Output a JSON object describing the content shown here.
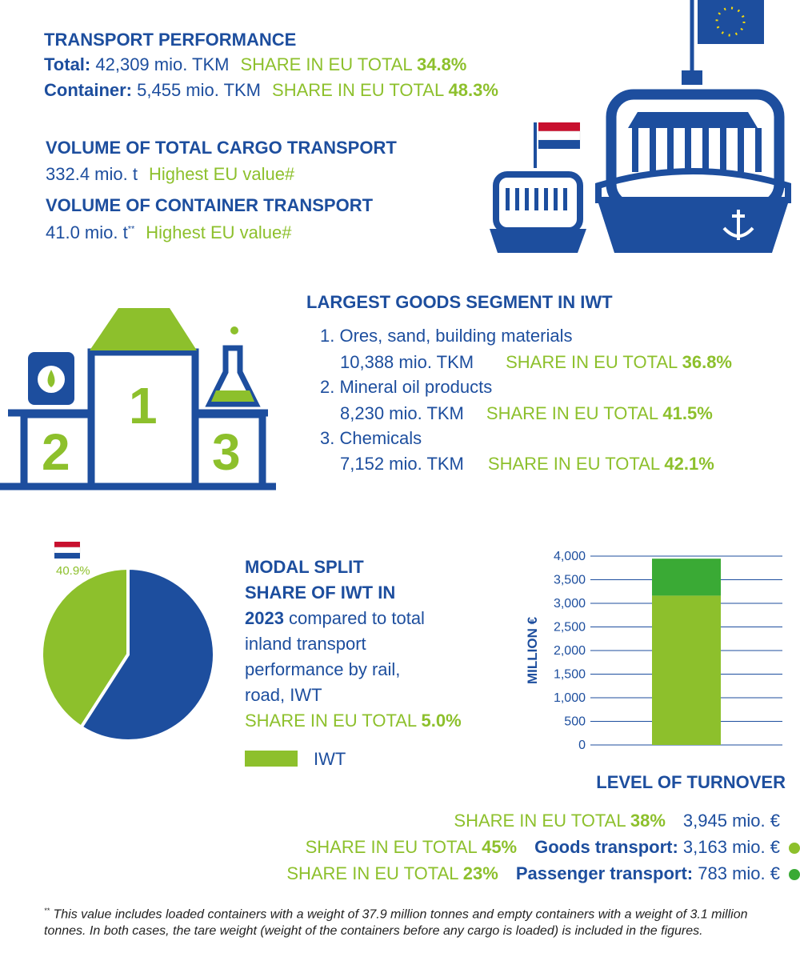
{
  "transport_performance": {
    "title": "TRANSPORT PERFORMANCE",
    "total": {
      "label": "Total:",
      "value": "42,309 mio. TKM",
      "share_label": "SHARE IN EU TOTAL",
      "share": "34.8%"
    },
    "container": {
      "label": "Container:",
      "value": "5,455 mio. TKM",
      "share_label": "SHARE IN EU TOTAL",
      "share": "48.3%"
    }
  },
  "cargo_volume": {
    "title": "VOLUME OF TOTAL CARGO TRANSPORT",
    "value": "332.4 mio. t",
    "note": "Highest EU value#"
  },
  "container_volume": {
    "title": "VOLUME OF CONTAINER TRANSPORT",
    "value": "41.0 mio. t",
    "mark": "**",
    "note": "Highest EU value#"
  },
  "goods_segment": {
    "title": "LARGEST GOODS SEGMENT IN IWT",
    "podium_labels": [
      "1",
      "2",
      "3"
    ],
    "items": [
      {
        "name": "1. Ores, sand, building materials",
        "value": "10,388 mio. TKM",
        "share_label": "SHARE IN EU TOTAL",
        "share": "36.8%"
      },
      {
        "name": "2. Mineral oil products",
        "value": "8,230 mio. TKM",
        "share_label": "SHARE IN EU TOTAL",
        "share": "41.5%"
      },
      {
        "name": "3. Chemicals",
        "value": "7,152 mio. TKM",
        "share_label": "SHARE IN EU TOTAL",
        "share": "42.1%"
      }
    ]
  },
  "modal_split": {
    "title": "MODAL SPLIT",
    "subtitle": "SHARE OF IWT IN",
    "year": "2023",
    "text": "compared to total inland transport performance by rail, road, IWT",
    "share_label": "SHARE IN EU TOTAL",
    "share": "5.0%"
  },
  "turnover": {
    "title": "LEVEL OF TURNOVER",
    "rows": [
      {
        "share_label": "SHARE IN EU TOTAL",
        "share": "38%",
        "label": null,
        "value": "3,945 mio. €"
      },
      {
        "share_label": "SHARE IN EU TOTAL",
        "share": "45%",
        "label": "Goods transport:",
        "value": "3,163 mio. €"
      },
      {
        "share_label": "SHARE IN EU TOTAL",
        "share": "23%",
        "label": "Passenger transport:",
        "value": "783 mio. €"
      }
    ]
  },
  "footnote": {
    "mark": "**",
    "text": "This value includes loaded containers with a weight of 37.9 million tonnes and empty containers with a weight of 3.1 million tonnes. In both cases, the tare weight (weight of the containers before any cargo is loaded) is included in the figures."
  },
  "chart_data": [
    {
      "type": "pie",
      "categories": [
        "IWT",
        null
      ],
      "values": [
        40.9,
        59.1
      ],
      "value_labels": [
        "40.9%",
        null
      ],
      "colors": [
        "#8dc02c",
        "#1d4e9e"
      ]
    },
    {
      "type": "bar",
      "stacked": true,
      "categories": [
        null
      ],
      "series": [
        {
          "color": "#8dc02c",
          "values": [
            3163
          ]
        },
        {
          "color": "#3aaa35",
          "values": [
            783
          ]
        }
      ],
      "ylim": [
        0,
        4000
      ],
      "yticks": [
        0,
        500,
        {
          "value": 1000,
          "label": "1,000"
        },
        {
          "value": 1500,
          "label": "1,500"
        },
        {
          "value": 2000,
          "label": "2,000"
        },
        {
          "value": 2500,
          "label": "2,500"
        },
        {
          "value": 3000,
          "label": "3,000"
        },
        {
          "value": 3500,
          "label": "3,500"
        },
        {
          "value": 4000,
          "label": "4,000"
        }
      ],
      "y_label": "MILLION €",
      "grid": true
    }
  ]
}
